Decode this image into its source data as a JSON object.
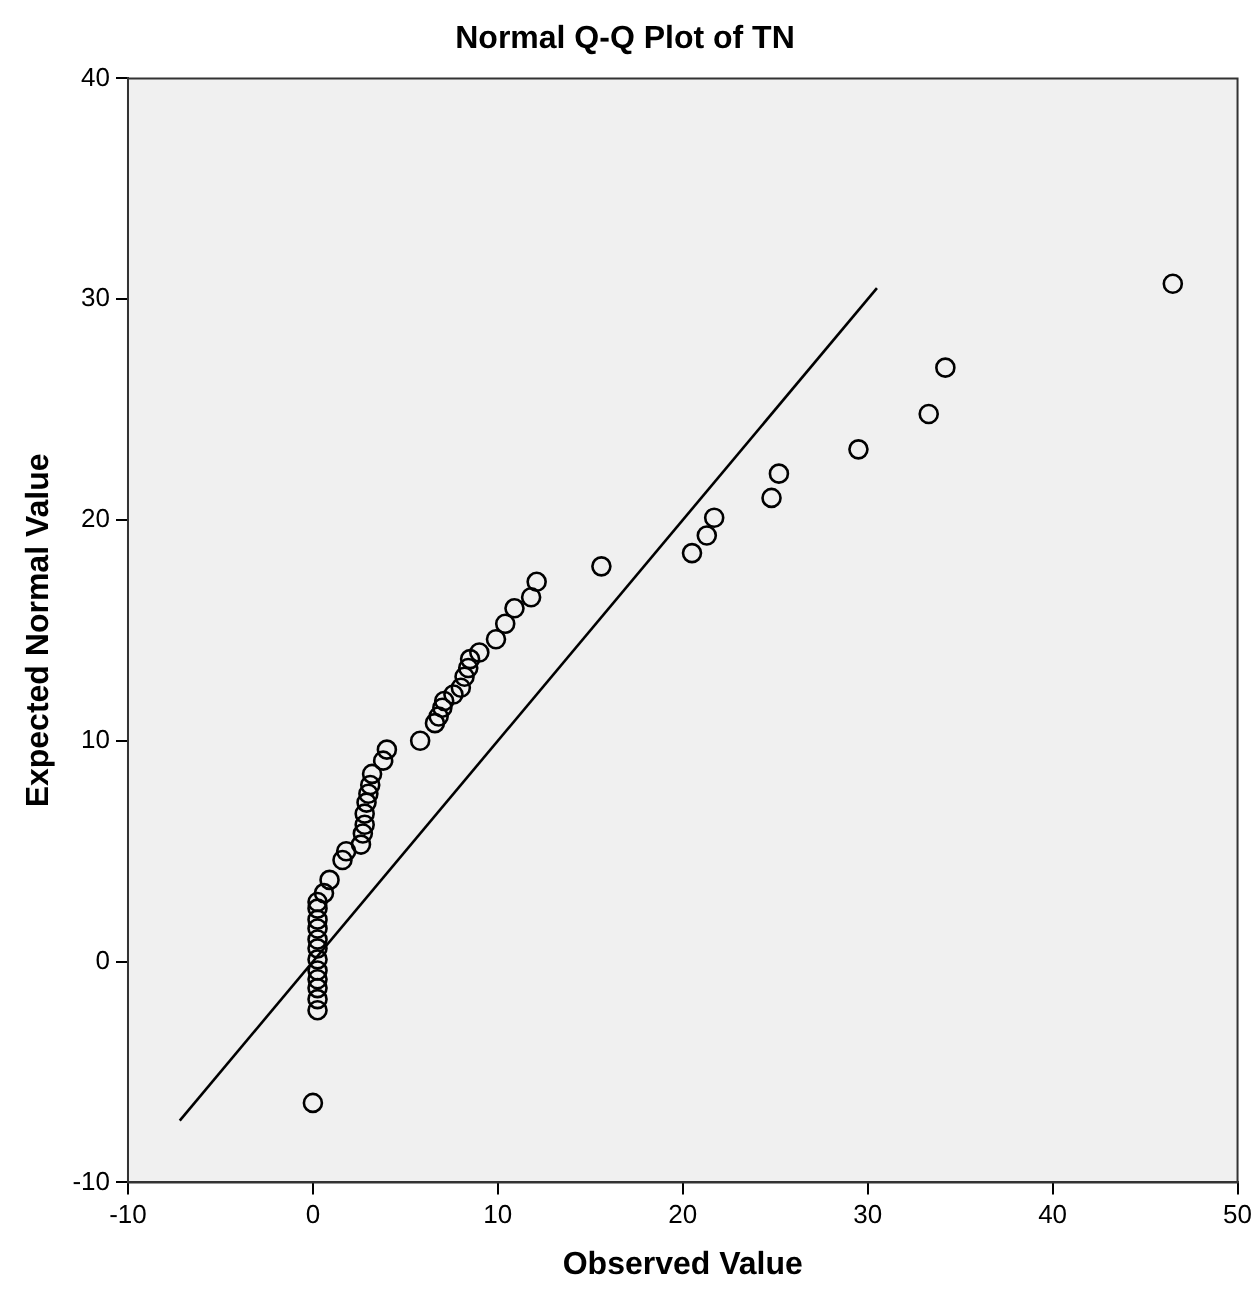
{
  "chart_data": {
    "type": "scatter",
    "title": "Normal Q-Q Plot of TN",
    "xlabel": "Observed Value",
    "ylabel": "Expected Normal Value",
    "xlim": [
      -10,
      50
    ],
    "ylim": [
      -10,
      40
    ],
    "xticks": [
      -10,
      0,
      10,
      20,
      30,
      40,
      50
    ],
    "yticks": [
      -10,
      0,
      10,
      20,
      30,
      40
    ],
    "grid": false,
    "legend": false,
    "marker": "circle",
    "series": [
      {
        "color": "#000000",
        "x": [
          0,
          0.25,
          0.25,
          0.25,
          0.25,
          0.25,
          0.25,
          0.25,
          0.25,
          0.25,
          0.25,
          0.25,
          0.25,
          0.6,
          0.9,
          1.6,
          1.8,
          2.6,
          2.7,
          2.8,
          2.8,
          2.9,
          3.0,
          3.1,
          3.2,
          3.8,
          4.0,
          5.8,
          6.6,
          6.8,
          7.0,
          7.1,
          7.6,
          8.0,
          8.2,
          8.4,
          8.5,
          9.0,
          9.9,
          10.4,
          10.9,
          11.8,
          12.1,
          15.6,
          20.5,
          21.3,
          21.7,
          24.8,
          25.2,
          29.5,
          33.3,
          34.2,
          46.5
        ],
        "values": [
          -6.4,
          -2.2,
          -1.7,
          -1.2,
          -0.8,
          -0.4,
          0.1,
          0.6,
          1.0,
          1.5,
          1.9,
          2.4,
          2.7,
          3.1,
          3.7,
          4.6,
          5.0,
          5.3,
          5.8,
          6.2,
          6.7,
          7.2,
          7.6,
          8.0,
          8.5,
          9.1,
          9.6,
          10.0,
          10.8,
          11.1,
          11.5,
          11.8,
          12.1,
          12.4,
          12.9,
          13.3,
          13.7,
          14.0,
          14.6,
          15.3,
          16.0,
          16.5,
          17.2,
          17.9,
          18.5,
          19.3,
          20.1,
          21.0,
          22.1,
          23.2,
          24.8,
          26.9,
          30.7
        ]
      },
      {
        "type": "line",
        "color": "#000000",
        "x": [
          -7.2,
          30.5
        ],
        "values": [
          -7.2,
          30.5
        ],
        "marker": "none",
        "line_style": "solid"
      }
    ]
  }
}
